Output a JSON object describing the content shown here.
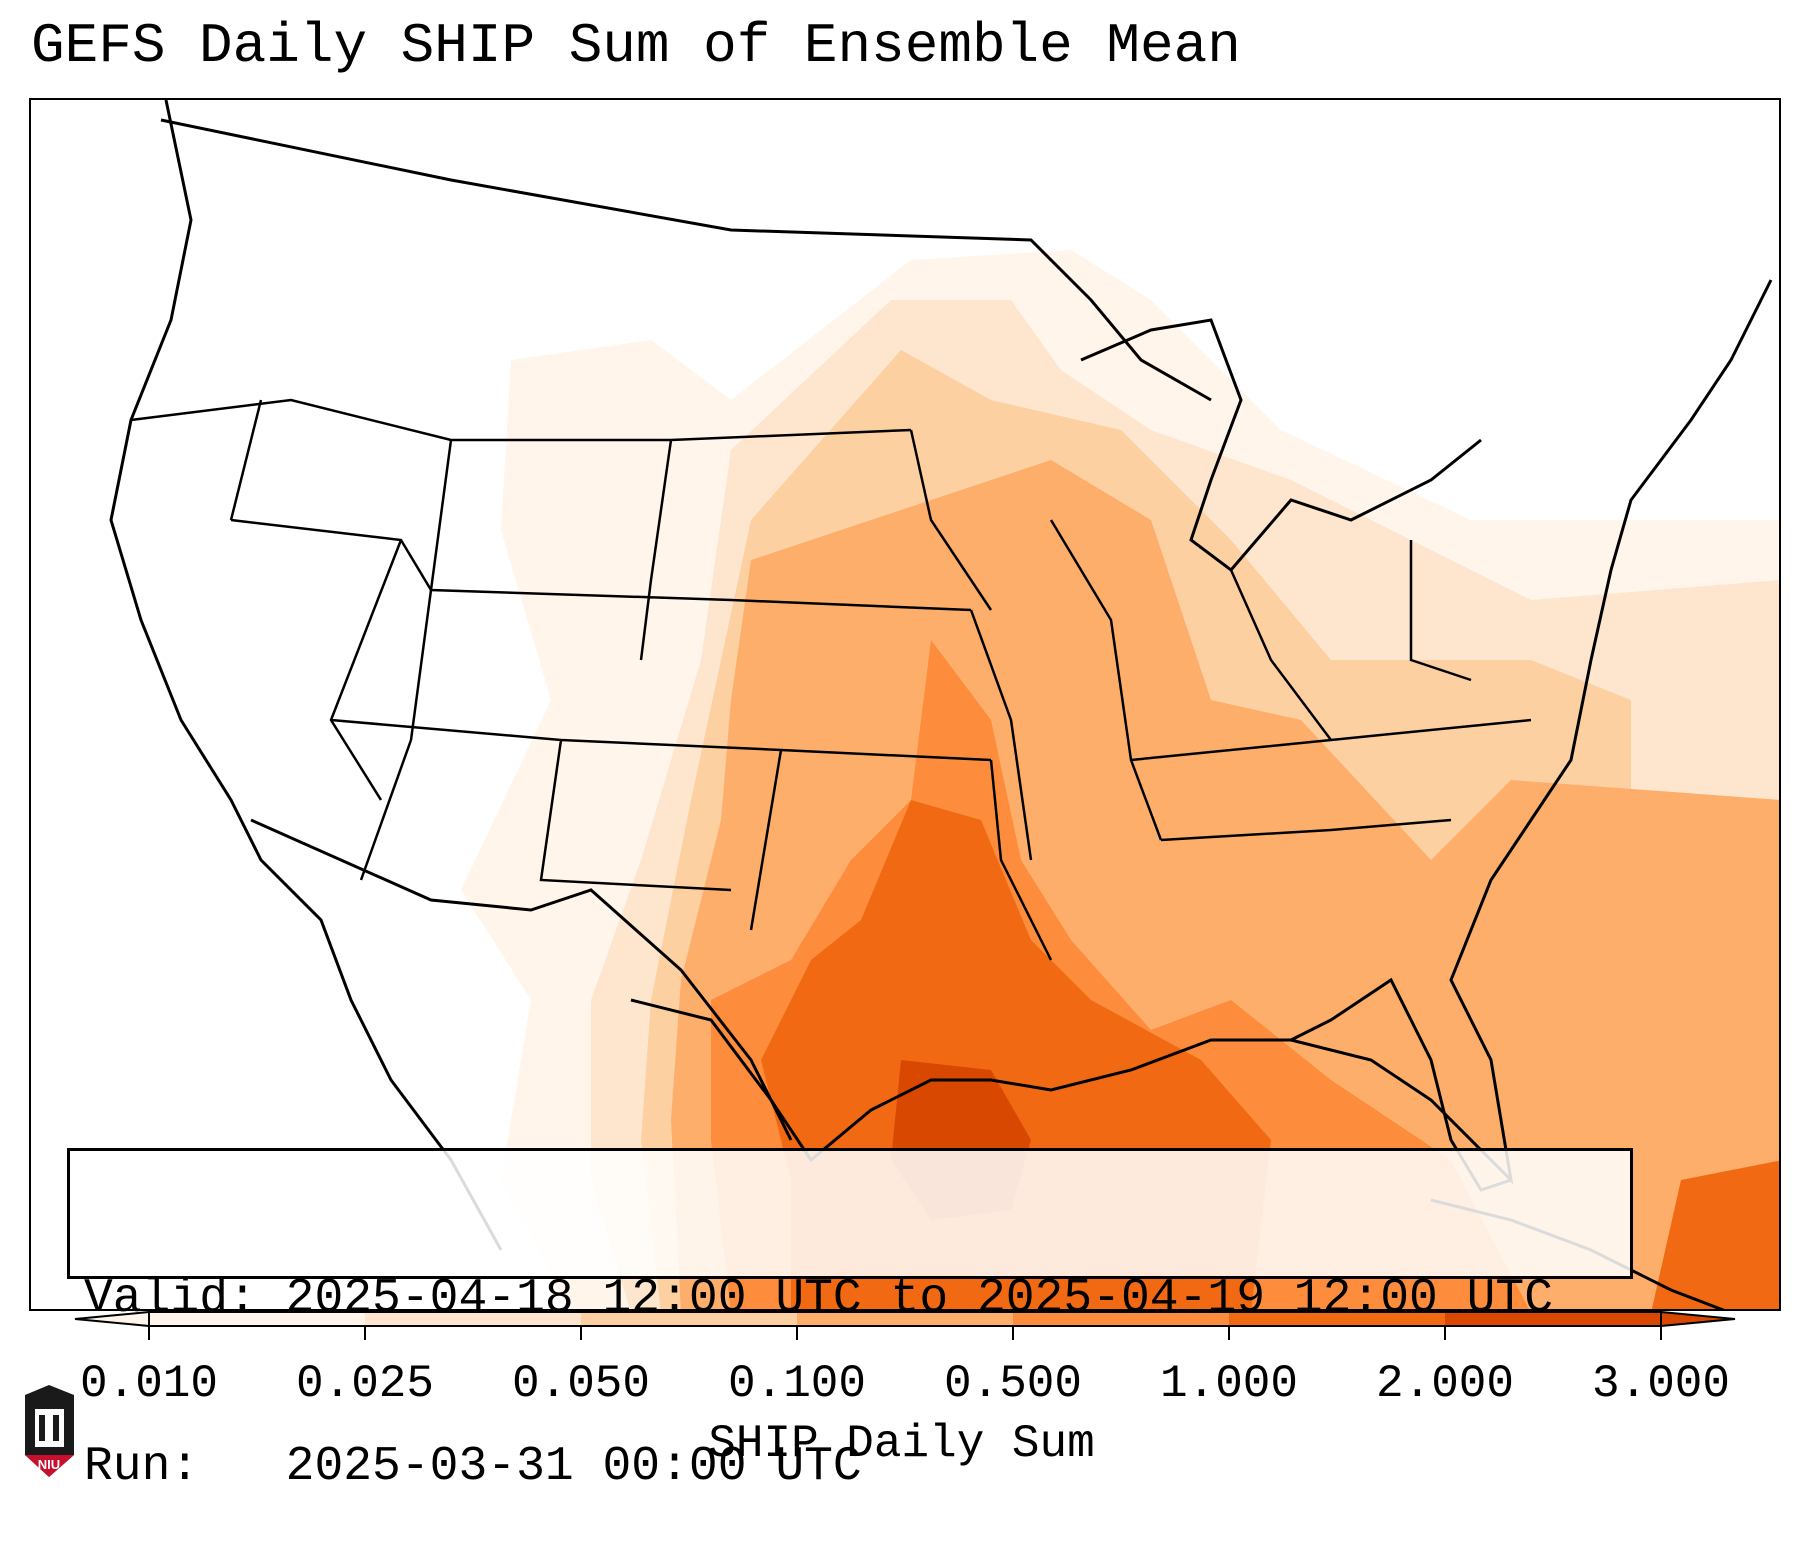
{
  "title": "GEFS Daily SHIP Sum of Ensemble Mean",
  "info": {
    "valid_line": "Valid: 2025-04-18 12:00 UTC to 2025-04-19 12:00 UTC",
    "run_line": "Run:   2025-03-31 00:00 UTC"
  },
  "colorbar": {
    "label": "SHIP Daily Sum",
    "ticks": [
      "0.010",
      "0.025",
      "0.050",
      "0.100",
      "0.500",
      "1.000",
      "2.000",
      "3.000"
    ],
    "colors": [
      "#fff5eb",
      "#fee6ce",
      "#fdd0a2",
      "#fdae6b",
      "#fd8d3c",
      "#f16913",
      "#d94801"
    ],
    "extend": "both"
  },
  "logo": {
    "text": "NIU",
    "color": "#c8102e"
  },
  "map": {
    "region": "Contiguous United States, northern Mexico, Gulf of Mexico and western Atlantic",
    "field_max_area": "northwestern Gulf of Mexico off the Texas coast",
    "colors": {
      "land_outline": "#000000",
      "background": "#ffffff"
    }
  }
}
